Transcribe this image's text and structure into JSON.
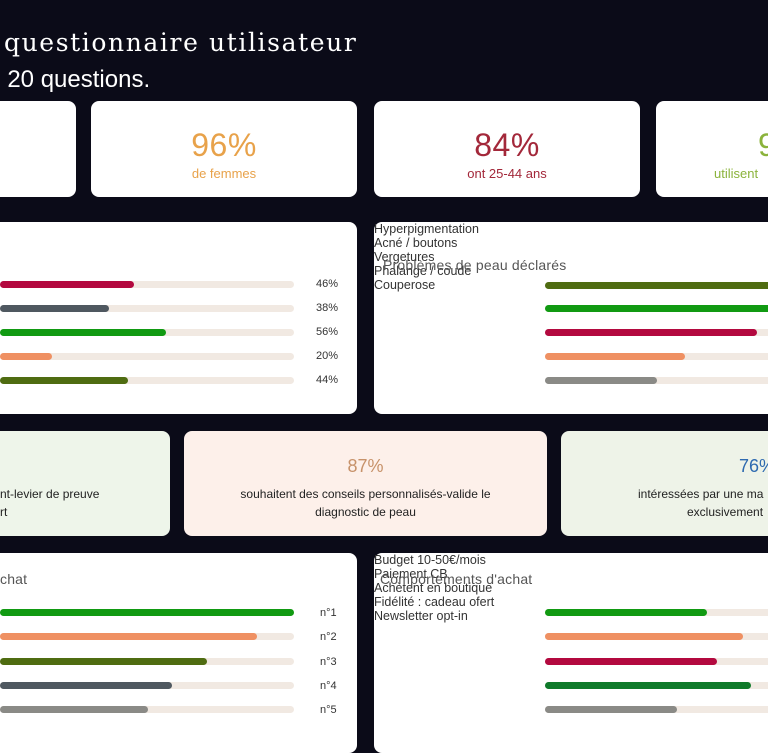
{
  "header": {
    "title": "questionnaire utilisateur",
    "subtitle": ". 20 questions."
  },
  "stats": [
    {
      "value": "96%",
      "label": "de femmes",
      "color": "#e8a24a"
    },
    {
      "value": "84%",
      "label": "ont 25-44 ans",
      "color": "#a3283a"
    },
    {
      "value": "9",
      "label": "utilisent",
      "color": "#8bb33c"
    }
  ],
  "left_panel": {
    "rows": [
      {
        "percent": "46%",
        "value": 0.46,
        "color": "#b3093f"
      },
      {
        "percent": "38%",
        "value": 0.38,
        "color": "#4f5860"
      },
      {
        "percent": "56%",
        "value": 0.56,
        "color": "#119a12"
      },
      {
        "percent": "20%",
        "value": 0.2,
        "color": "#ef9062"
      },
      {
        "percent": "44%",
        "value": 0.44,
        "color": "#4f6c11"
      }
    ]
  },
  "skin_panel": {
    "title": "Problèmes de peau déclarés",
    "rows": [
      {
        "label": "Hyperpigmentation",
        "color": "#4f6c11"
      },
      {
        "label": "Acné / boutons",
        "color": "#119a12"
      },
      {
        "label": "Vergetures",
        "color": "#b3093f"
      },
      {
        "label": "Phalange / coude",
        "color": "#ef9062"
      },
      {
        "label": "Couperose",
        "color": "#8a8a86"
      }
    ]
  },
  "middle_cards": [
    {
      "text_line1": "nt-levier de preuve",
      "text_line2": "rt",
      "bg": "#eef5ea"
    },
    {
      "value": "87%",
      "value_color": "#c7926a",
      "text_line1": "souhaitent des conseils personnalisés-valide le",
      "text_line2": "diagnostic de peau",
      "bg": "#fdf0ea"
    },
    {
      "value": "76%",
      "value_color": "#2e6ab0",
      "text_line1": "intéressées par une ma",
      "text_line2": "exclusivement",
      "bg": "#eef3e8"
    }
  ],
  "rank_panel": {
    "title": "chat",
    "rows": [
      {
        "rank": "n°1",
        "value": 1.0,
        "color": "#119a12"
      },
      {
        "rank": "n°2",
        "value": 0.84,
        "color": "#ef9062"
      },
      {
        "rank": "n°3",
        "value": 0.67,
        "color": "#4f6c11"
      },
      {
        "rank": "n°4",
        "value": 0.55,
        "color": "#4f5860"
      },
      {
        "rank": "n°5",
        "value": 0.47,
        "color": "#8a8a86"
      }
    ]
  },
  "behavior_panel": {
    "title": "Comportements d'achat",
    "rows": [
      {
        "label": "Budget 10-50€/mois",
        "color": "#119a12"
      },
      {
        "label": "Paiement CB",
        "color": "#ef9062"
      },
      {
        "label": "Achètent en boutique",
        "color": "#b3093f"
      },
      {
        "label": "Fidélité : cadeau ofert",
        "color": "#0f7a2a"
      },
      {
        "label": "Newsletter opt-in",
        "color": "#8a8a86"
      }
    ]
  }
}
